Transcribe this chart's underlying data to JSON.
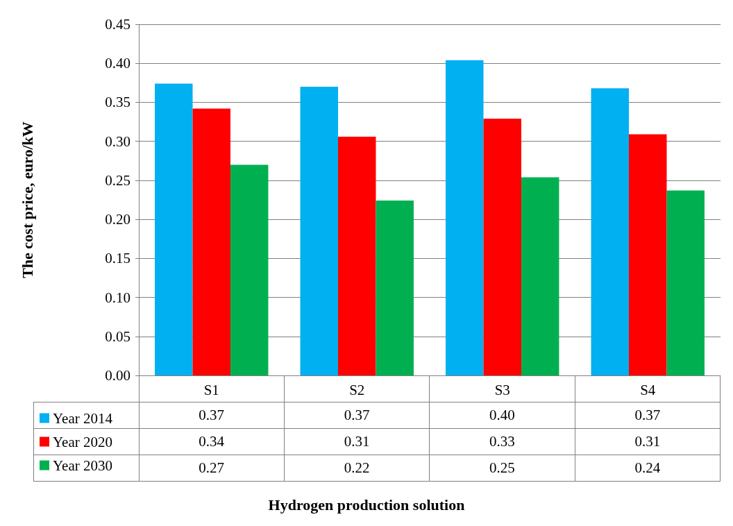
{
  "chart_data": {
    "type": "bar",
    "annotations": [
      "Hydrogen production solution"
    ],
    "ylabel": "The cost price, euro/kW",
    "categories": [
      "S1",
      "S2",
      "S3",
      "S4"
    ],
    "series": [
      {
        "name": "Year 2014",
        "color": "#00b0f0",
        "values": [
          0.374,
          0.37,
          0.404,
          0.368
        ],
        "value_labels": [
          "0.37",
          "0.37",
          "0.40",
          "0.37"
        ]
      },
      {
        "name": "Year 2020",
        "color": "#ff0000",
        "values": [
          0.342,
          0.306,
          0.329,
          0.309
        ],
        "value_labels": [
          "0.34",
          "0.31",
          "0.33",
          "0.31"
        ]
      },
      {
        "name": "Year 2030",
        "color": "#00b050",
        "values": [
          0.27,
          0.224,
          0.254,
          0.237
        ],
        "value_labels": [
          "0.27",
          "0.22",
          "0.25",
          "0.24"
        ]
      }
    ],
    "ylim": [
      0,
      0.45
    ],
    "yticks": [
      {
        "value": 0,
        "label": "0.00"
      },
      {
        "value": 0.05,
        "label": "0.05"
      },
      {
        "value": 0.1,
        "label": "0.10"
      },
      {
        "value": 0.15,
        "label": "0.15"
      },
      {
        "value": 0.2,
        "label": "0.20"
      },
      {
        "value": 0.25,
        "label": "0.25"
      },
      {
        "value": 0.3,
        "label": "0.30"
      },
      {
        "value": 0.35,
        "label": "0.35"
      },
      {
        "value": 0.4,
        "label": "0.40"
      },
      {
        "value": 0.45,
        "label": "0.45"
      }
    ],
    "grid": "y",
    "legend": "bottom left"
  }
}
